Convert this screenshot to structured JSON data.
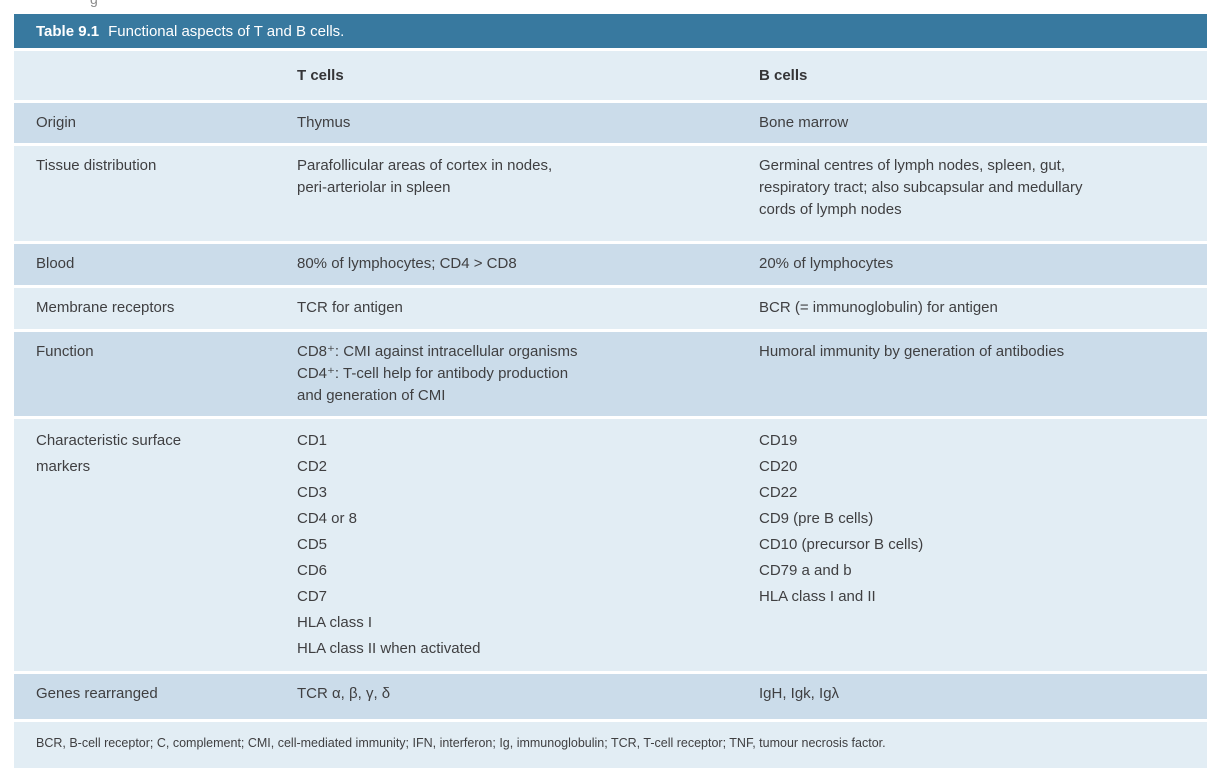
{
  "page": {
    "stray_fragment": "g"
  },
  "colors": {
    "header_bar": "#38799f",
    "row_light": "#e2edf4",
    "row_dark": "#cbdcea",
    "text": "#3f3f41",
    "title_text": "#ffffff"
  },
  "table": {
    "title_prefix": "Table 9.1",
    "title": "Functional aspects of T and B cells.",
    "columns": {
      "attribute": "",
      "t": "T cells",
      "b": "B cells"
    },
    "rows": [
      {
        "label": "Origin",
        "t": "Thymus",
        "b": "Bone marrow"
      },
      {
        "label": "Tissue distribution",
        "t": "Parafollicular areas of cortex in nodes,\nperi-arteriolar in spleen",
        "b": "Germinal centres of lymph nodes, spleen, gut,\nrespiratory tract; also subcapsular and medullary\ncords of lymph nodes"
      },
      {
        "label": "Blood",
        "t": "80% of lymphocytes; CD4 > CD8",
        "b": "20% of lymphocytes"
      },
      {
        "label": "Membrane receptors",
        "t": "TCR for antigen",
        "b": "BCR (= immunoglobulin) for antigen"
      },
      {
        "label": "Function",
        "t": "CD8⁺: CMI against intracellular organisms\nCD4⁺: T-cell help for antibody production\nand generation of CMI",
        "b": "Humoral immunity by generation of antibodies"
      },
      {
        "label": "Characteristic surface\nmarkers",
        "t": "CD1\nCD2\nCD3\nCD4 or 8\nCD5\nCD6\nCD7\nHLA class I\nHLA class II when activated",
        "b": "CD19\nCD20\nCD22\nCD9 (pre B cells)\nCD10 (precursor B cells)\nCD79 a and b\nHLA class I and II"
      },
      {
        "label": "Genes rearranged",
        "t": "TCR α, β, γ, δ",
        "b": "IgH, Igk, Igλ"
      }
    ],
    "footnote": "BCR, B-cell receptor; C, complement; CMI, cell-mediated immunity; IFN, interferon; Ig, immunoglobulin; TCR, T-cell receptor; TNF, tumour necrosis factor."
  }
}
